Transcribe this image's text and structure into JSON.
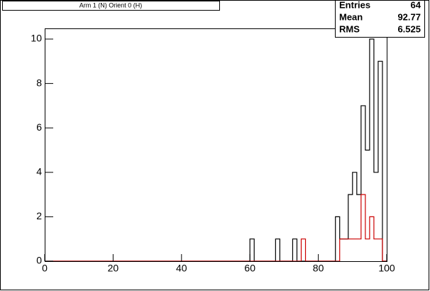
{
  "chart_data": {
    "type": "histogram",
    "title": "Arm 1 (N) Orient 0 (H)",
    "bins": [
      0,
      1.25,
      2.5,
      3.75,
      5,
      6.25,
      7.5,
      8.75,
      10,
      11.25,
      12.5,
      13.75,
      15,
      16.25,
      17.5,
      18.75,
      20,
      21.25,
      22.5,
      23.75,
      25,
      26.25,
      27.5,
      28.75,
      30,
      31.25,
      32.5,
      33.75,
      35,
      36.25,
      37.5,
      38.75,
      40,
      41.25,
      42.5,
      43.75,
      45,
      46.25,
      47.5,
      48.75,
      50,
      51.25,
      52.5,
      53.75,
      55,
      56.25,
      57.5,
      58.75,
      60,
      61.25,
      62.5,
      63.75,
      65,
      66.25,
      67.5,
      68.75,
      70,
      71.25,
      72.5,
      73.75,
      75,
      76.25,
      77.5,
      78.75,
      80,
      81.25,
      82.5,
      83.75,
      85,
      86.25,
      87.5,
      88.75,
      90,
      91.25,
      92.5,
      93.75,
      95,
      96.25,
      97.5,
      98.75,
      100
    ],
    "series": [
      {
        "color": "#000000",
        "values": [
          0,
          0,
          0,
          0,
          0,
          0,
          0,
          0,
          0,
          0,
          0,
          0,
          0,
          0,
          0,
          0,
          0,
          0,
          0,
          0,
          0,
          0,
          0,
          0,
          0,
          0,
          0,
          0,
          0,
          0,
          0,
          0,
          0,
          0,
          0,
          0,
          0,
          0,
          0,
          0,
          0,
          0,
          0,
          0,
          0,
          0,
          0,
          0,
          1,
          0,
          0,
          0,
          0,
          0,
          1,
          0,
          0,
          0,
          1,
          0,
          0,
          0,
          0,
          0,
          0,
          0,
          0,
          0,
          2,
          1,
          1,
          3,
          4,
          3,
          7,
          5,
          10,
          4,
          9,
          0
        ]
      },
      {
        "color": "#cc0000",
        "values": [
          0,
          0,
          0,
          0,
          0,
          0,
          0,
          0,
          0,
          0,
          0,
          0,
          0,
          0,
          0,
          0,
          0,
          0,
          0,
          0,
          0,
          0,
          0,
          0,
          0,
          0,
          0,
          0,
          0,
          0,
          0,
          0,
          0,
          0,
          0,
          0,
          0,
          0,
          0,
          0,
          0,
          0,
          0,
          0,
          0,
          0,
          0,
          0,
          0,
          0,
          0,
          0,
          0,
          0,
          0,
          0,
          0,
          0,
          0,
          0,
          1,
          0,
          0,
          0,
          0,
          0,
          0,
          0,
          0,
          1,
          1,
          1,
          1,
          1,
          3,
          1,
          2,
          1,
          1,
          0
        ]
      }
    ],
    "xlim": [
      0,
      100
    ],
    "xticks": [
      0,
      20,
      40,
      60,
      80,
      100
    ],
    "ylim": [
      0,
      10.48
    ],
    "yticks": [
      0,
      2,
      4,
      6,
      8,
      10
    ],
    "stats": [
      {
        "label": "Entries",
        "value": 64
      },
      {
        "label": "Mean",
        "value": 92.77
      },
      {
        "label": "RMS",
        "value": 6.525
      }
    ]
  }
}
